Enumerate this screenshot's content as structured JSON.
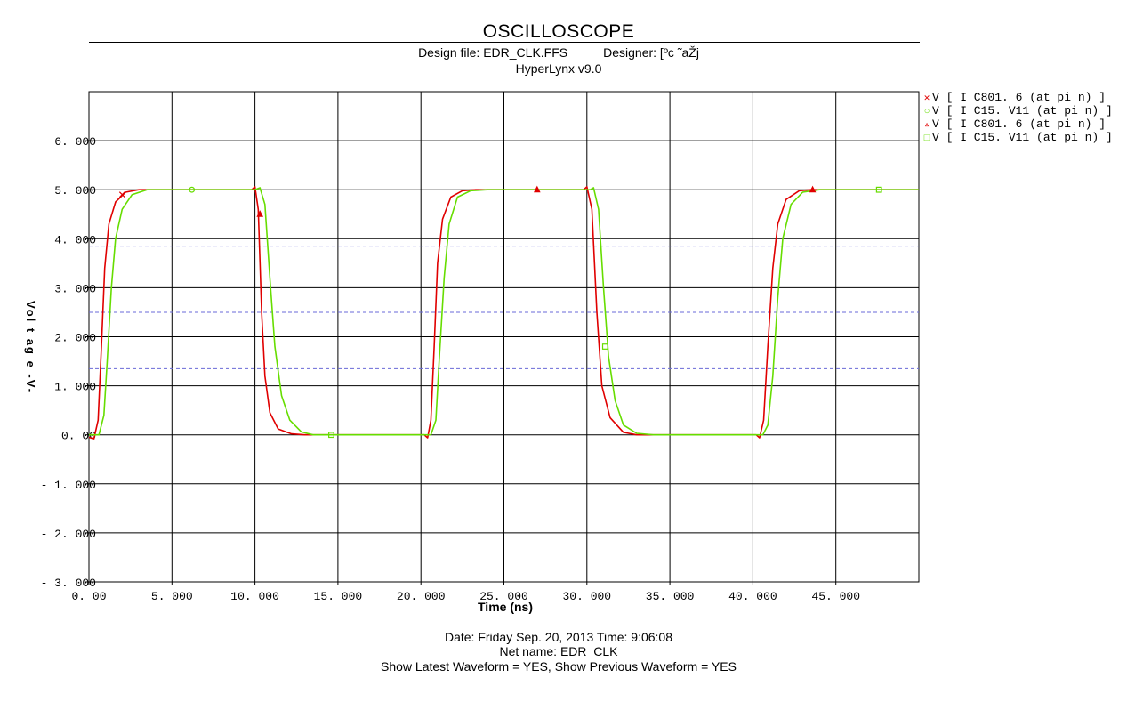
{
  "header": {
    "title": "OSCILLOSCOPE",
    "design_file": "Design file: EDR_CLK.FFS",
    "designer": "Designer: [ºc ˜aŽj",
    "software": "HyperLynx v9.0"
  },
  "footer": {
    "date_line": "Date: Friday Sep. 20, 2013   Time: 9:06:08",
    "net_line": "Net name: EDR_CLK",
    "waveform_line": "Show Latest Waveform = YES,   Show Previous Waveform = YES"
  },
  "chart_data": {
    "type": "line",
    "title": "OSCILLOSCOPE",
    "xlabel": "Time (ns)",
    "ylabel": "Vol t ag e -V-",
    "xlim": [
      0,
      50
    ],
    "ylim": [
      -3,
      7
    ],
    "grid": true,
    "legend_position": "right",
    "x_ticks": [
      "0. 00",
      "5. 000",
      "10. 000",
      "15. 000",
      "20. 000",
      "25. 000",
      "30. 000",
      "35. 000",
      "40. 000",
      "45. 000"
    ],
    "y_ticks": [
      "6. 000",
      "5. 000",
      "4. 000",
      "3. 000",
      "2. 000",
      "1. 000",
      "0. 00",
      "- 1. 000",
      "- 2. 000",
      "- 3. 000"
    ],
    "reference_levels": [
      3.85,
      2.5,
      1.35
    ],
    "series": [
      {
        "name": "V [ I C801. 6 (at pi n) ]",
        "marker": "x",
        "color": "#e00000",
        "points": [
          [
            0,
            -0.05
          ],
          [
            0.3,
            -0.08
          ],
          [
            0.55,
            0.3
          ],
          [
            0.75,
            1.8
          ],
          [
            0.95,
            3.4
          ],
          [
            1.2,
            4.3
          ],
          [
            1.6,
            4.75
          ],
          [
            2.2,
            4.95
          ],
          [
            3.0,
            5.0
          ],
          [
            9.8,
            5.0
          ],
          [
            10.0,
            5.06
          ],
          [
            10.2,
            4.6
          ],
          [
            10.4,
            2.5
          ],
          [
            10.6,
            1.2
          ],
          [
            10.9,
            0.45
          ],
          [
            11.4,
            0.12
          ],
          [
            12.2,
            0.02
          ],
          [
            13.0,
            0.0
          ],
          [
            20.2,
            0.0
          ],
          [
            20.4,
            -0.06
          ],
          [
            20.6,
            0.3
          ],
          [
            20.8,
            1.8
          ],
          [
            21.0,
            3.5
          ],
          [
            21.3,
            4.4
          ],
          [
            21.8,
            4.85
          ],
          [
            22.5,
            4.98
          ],
          [
            23.3,
            5.0
          ],
          [
            29.8,
            5.0
          ],
          [
            30.0,
            5.06
          ],
          [
            30.3,
            4.6
          ],
          [
            30.6,
            2.5
          ],
          [
            30.9,
            1.0
          ],
          [
            31.4,
            0.35
          ],
          [
            32.2,
            0.05
          ],
          [
            33.0,
            0.0
          ],
          [
            40.2,
            0.0
          ],
          [
            40.4,
            -0.06
          ],
          [
            40.65,
            0.3
          ],
          [
            40.9,
            1.8
          ],
          [
            41.2,
            3.4
          ],
          [
            41.5,
            4.3
          ],
          [
            42.0,
            4.8
          ],
          [
            42.8,
            4.98
          ],
          [
            43.5,
            5.0
          ],
          [
            50.0,
            5.0
          ]
        ],
        "markers_at": [
          [
            2.0,
            4.9
          ]
        ]
      },
      {
        "name": "V [ I C15. V11 (at pi n) ]",
        "marker": "o",
        "color": "#66dd00",
        "points": [
          [
            0,
            0.0
          ],
          [
            0.6,
            0.0
          ],
          [
            0.9,
            0.4
          ],
          [
            1.1,
            1.5
          ],
          [
            1.35,
            3.0
          ],
          [
            1.6,
            4.0
          ],
          [
            2.0,
            4.6
          ],
          [
            2.6,
            4.9
          ],
          [
            3.5,
            5.0
          ],
          [
            10.0,
            5.0
          ],
          [
            10.3,
            5.04
          ],
          [
            10.6,
            4.7
          ],
          [
            10.9,
            3.2
          ],
          [
            11.2,
            1.8
          ],
          [
            11.6,
            0.8
          ],
          [
            12.1,
            0.3
          ],
          [
            12.8,
            0.06
          ],
          [
            13.5,
            0.0
          ],
          [
            20.6,
            0.0
          ],
          [
            20.9,
            0.3
          ],
          [
            21.1,
            1.5
          ],
          [
            21.4,
            3.2
          ],
          [
            21.7,
            4.3
          ],
          [
            22.2,
            4.85
          ],
          [
            23.0,
            4.98
          ],
          [
            24.0,
            5.0
          ],
          [
            30.2,
            5.0
          ],
          [
            30.4,
            5.04
          ],
          [
            30.7,
            4.6
          ],
          [
            31.0,
            3.0
          ],
          [
            31.3,
            1.6
          ],
          [
            31.7,
            0.7
          ],
          [
            32.2,
            0.2
          ],
          [
            33.0,
            0.03
          ],
          [
            34.0,
            0.0
          ],
          [
            40.6,
            0.0
          ],
          [
            40.9,
            0.2
          ],
          [
            41.2,
            1.2
          ],
          [
            41.5,
            2.8
          ],
          [
            41.8,
            4.0
          ],
          [
            42.3,
            4.7
          ],
          [
            43.0,
            4.95
          ],
          [
            44.0,
            5.0
          ],
          [
            50.0,
            5.0
          ]
        ],
        "markers_at": [
          [
            6.2,
            5.0
          ]
        ]
      },
      {
        "name": "V [ I C801. 6 (at pi n) ]",
        "marker": "triangle",
        "color": "#e00000",
        "points": [],
        "markers_at": [
          [
            10.3,
            4.5
          ],
          [
            27.0,
            5.0
          ],
          [
            43.6,
            5.0
          ]
        ]
      },
      {
        "name": "V [ I C15. V11 (at pi n) ]",
        "marker": "square",
        "color": "#66dd00",
        "points": [],
        "markers_at": [
          [
            14.6,
            0.0
          ],
          [
            31.1,
            1.8
          ],
          [
            47.6,
            5.0
          ]
        ]
      }
    ]
  }
}
